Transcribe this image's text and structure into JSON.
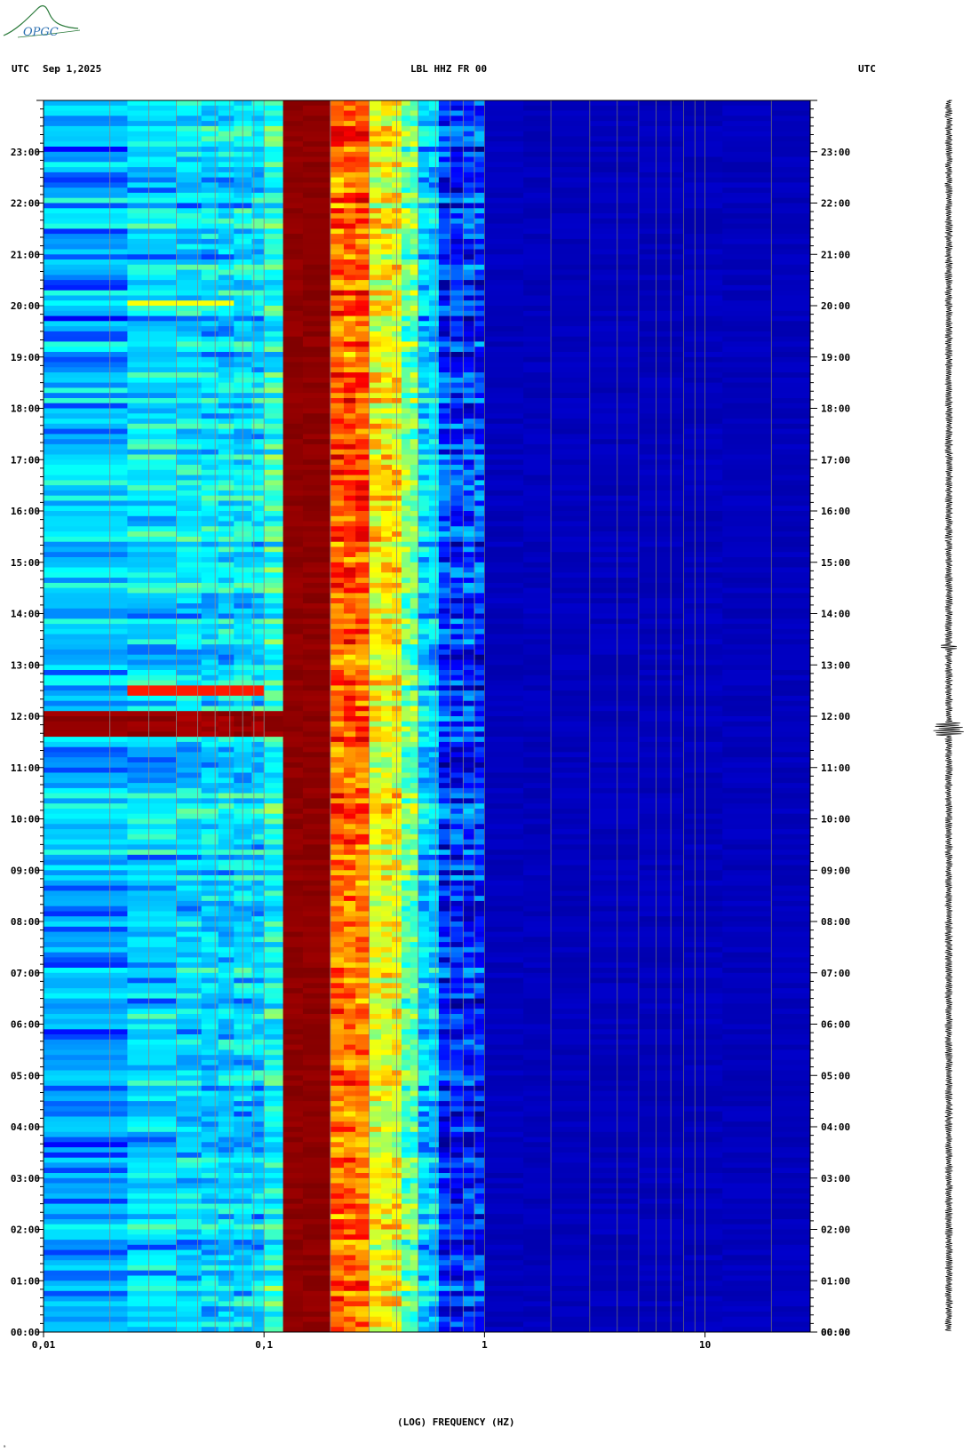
{
  "header": {
    "tz_left": "UTC",
    "date": "Sep 1,2025",
    "station": "LBL HHZ FR 00",
    "tz_right": "UTC"
  },
  "logo": {
    "text": "OPGC",
    "color": "#2a7a3a"
  },
  "corner_mark": "ᵃ",
  "chart_data": {
    "type": "heatmap",
    "title": "LBL HHZ FR 00",
    "xlabel": "(LOG) FREQUENCY (HZ)",
    "ylabel": "",
    "x_scale": "log",
    "x_range_hz": [
      0.01,
      30
    ],
    "x_ticks": [
      {
        "value": 0.01,
        "label": "0,01"
      },
      {
        "value": 0.1,
        "label": "0,1"
      },
      {
        "value": 1,
        "label": "1"
      },
      {
        "value": 10,
        "label": "10"
      }
    ],
    "y_range_hours_utc": [
      0,
      24
    ],
    "y_ticks": [
      "00:00",
      "01:00",
      "02:00",
      "03:00",
      "04:00",
      "05:00",
      "06:00",
      "07:00",
      "08:00",
      "09:00",
      "10:00",
      "11:00",
      "12:00",
      "13:00",
      "14:00",
      "15:00",
      "16:00",
      "17:00",
      "18:00",
      "19:00",
      "20:00",
      "21:00",
      "22:00",
      "23:00"
    ],
    "colormap": [
      "#00007f",
      "#0000ff",
      "#00a0ff",
      "#00ffff",
      "#80ff80",
      "#ffff00",
      "#ff8000",
      "#ff0000",
      "#7f0000"
    ],
    "features": [
      {
        "name": "microseism peak",
        "freq_hz": [
          0.12,
          0.2
        ],
        "level": "max"
      },
      {
        "name": "secondary microseism band",
        "freq_hz": [
          0.2,
          0.5
        ],
        "level": "high"
      },
      {
        "name": "low-frequency event",
        "time_utc": "11:45",
        "freq_hz": [
          0.01,
          0.12
        ],
        "level": "max"
      },
      {
        "name": "long-period line",
        "time_utc": "20:05",
        "freq_hz": [
          0.025,
          0.07
        ],
        "level": "high"
      }
    ],
    "grid": true
  }
}
